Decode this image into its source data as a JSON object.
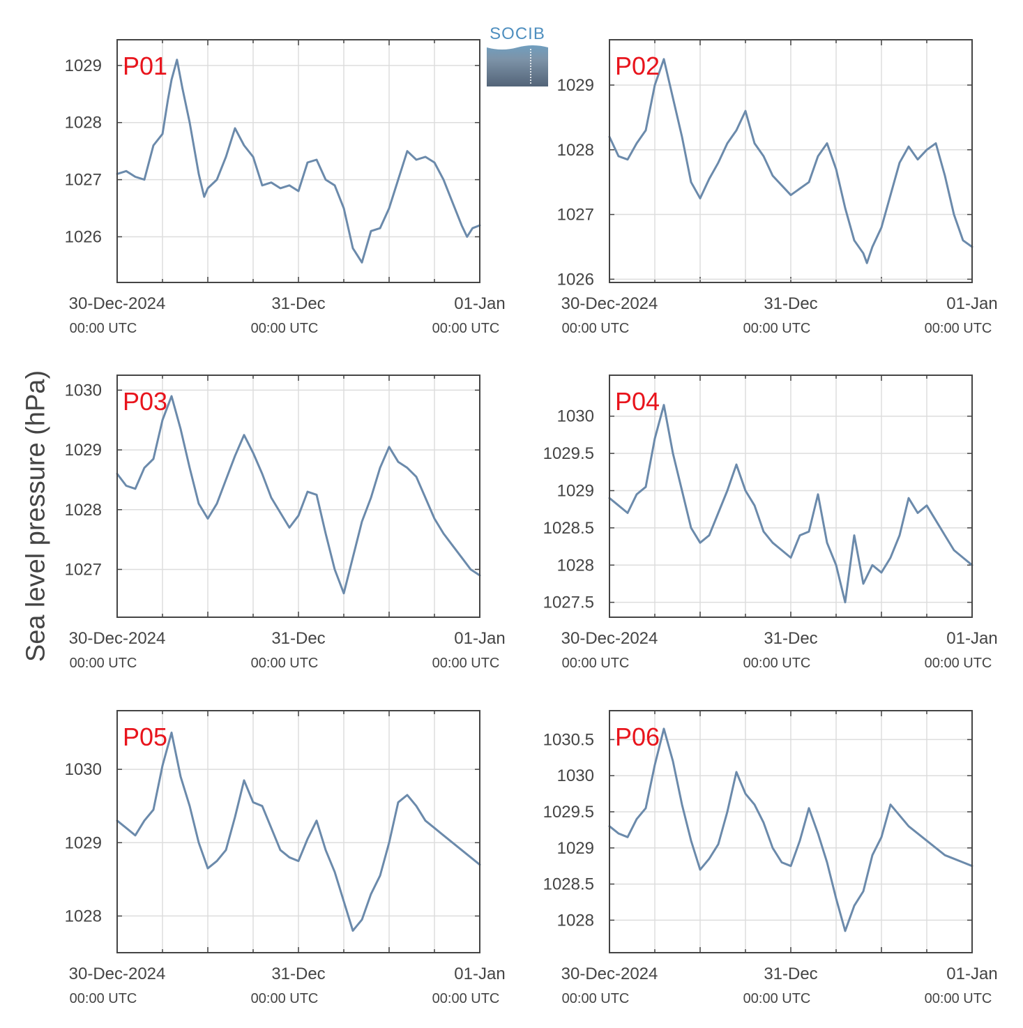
{
  "figure": {
    "ylabel": "Sea level pressure (hPa)",
    "logo": "SOCIB",
    "line_color": "#6b8aab",
    "label_color": "#e8141c"
  },
  "chart_data": [
    {
      "type": "line",
      "name": "P01",
      "x_ticks": [
        {
          "day": 0,
          "date": "30-Dec-2024",
          "time": "00:00 UTC"
        },
        {
          "day": 1,
          "date": "31-Dec",
          "time": "00:00 UTC"
        },
        {
          "day": 2,
          "date": "01-Jan",
          "time": "00:00 UTC"
        }
      ],
      "xlim": [
        0,
        2
      ],
      "ylim": [
        1025.2,
        1029.45
      ],
      "yticks": [
        {
          "v": 1026,
          "label": "1026"
        },
        {
          "v": 1027,
          "label": "1027"
        },
        {
          "v": 1028,
          "label": "1028"
        },
        {
          "v": 1029,
          "label": "1029"
        }
      ],
      "x": [
        0,
        0.05,
        0.1,
        0.15,
        0.2,
        0.25,
        0.28,
        0.3,
        0.33,
        0.36,
        0.4,
        0.45,
        0.48,
        0.5,
        0.55,
        0.6,
        0.65,
        0.7,
        0.75,
        0.8,
        0.85,
        0.9,
        0.95,
        1.0,
        1.05,
        1.1,
        1.15,
        1.2,
        1.25,
        1.3,
        1.35,
        1.4,
        1.45,
        1.5,
        1.53,
        1.56,
        1.6,
        1.65,
        1.7,
        1.75,
        1.8,
        1.85,
        1.9,
        1.93,
        1.96,
        2.0
      ],
      "y": [
        1027.1,
        1027.15,
        1027.05,
        1027.0,
        1027.6,
        1027.8,
        1028.4,
        1028.75,
        1029.1,
        1028.6,
        1028.0,
        1027.1,
        1026.7,
        1026.85,
        1027.0,
        1027.4,
        1027.9,
        1027.6,
        1027.4,
        1026.9,
        1026.95,
        1026.85,
        1026.9,
        1026.8,
        1027.3,
        1027.35,
        1027.0,
        1026.9,
        1026.5,
        1025.8,
        1025.55,
        1026.1,
        1026.15,
        1026.5,
        1026.8,
        1027.1,
        1027.5,
        1027.35,
        1027.4,
        1027.3,
        1027.0,
        1026.6,
        1026.2,
        1026.0,
        1026.15,
        1026.2
      ]
    },
    {
      "type": "line",
      "name": "P02",
      "x_ticks": [
        {
          "day": 0,
          "date": "30-Dec-2024",
          "time": "00:00 UTC"
        },
        {
          "day": 1,
          "date": "31-Dec",
          "time": "00:00 UTC"
        },
        {
          "day": 2,
          "date": "01-Jan",
          "time": "00:00 UTC"
        }
      ],
      "xlim": [
        0,
        2
      ],
      "ylim": [
        1025.95,
        1029.7
      ],
      "yticks": [
        {
          "v": 1026,
          "label": "1026"
        },
        {
          "v": 1027,
          "label": "1027"
        },
        {
          "v": 1028,
          "label": "1028"
        },
        {
          "v": 1029,
          "label": "1029"
        }
      ],
      "x": [
        0,
        0.05,
        0.1,
        0.15,
        0.2,
        0.25,
        0.3,
        0.35,
        0.4,
        0.45,
        0.5,
        0.55,
        0.6,
        0.65,
        0.7,
        0.75,
        0.8,
        0.85,
        0.9,
        0.95,
        1.0,
        1.05,
        1.1,
        1.15,
        1.2,
        1.25,
        1.3,
        1.35,
        1.4,
        1.42,
        1.45,
        1.5,
        1.55,
        1.6,
        1.65,
        1.7,
        1.75,
        1.8,
        1.85,
        1.9,
        1.95,
        2.0
      ],
      "y": [
        1028.2,
        1027.9,
        1027.85,
        1028.1,
        1028.3,
        1029.0,
        1029.4,
        1028.8,
        1028.2,
        1027.5,
        1027.25,
        1027.55,
        1027.8,
        1028.1,
        1028.3,
        1028.6,
        1028.1,
        1027.9,
        1027.6,
        1027.45,
        1027.3,
        1027.4,
        1027.5,
        1027.9,
        1028.1,
        1027.7,
        1027.1,
        1026.6,
        1026.4,
        1026.25,
        1026.5,
        1026.8,
        1027.3,
        1027.8,
        1028.05,
        1027.85,
        1028.0,
        1028.1,
        1027.6,
        1027.0,
        1026.6,
        1026.5
      ]
    },
    {
      "type": "line",
      "name": "P03",
      "x_ticks": [
        {
          "day": 0,
          "date": "30-Dec-2024",
          "time": "00:00 UTC"
        },
        {
          "day": 1,
          "date": "31-Dec",
          "time": "00:00 UTC"
        },
        {
          "day": 2,
          "date": "01-Jan",
          "time": "00:00 UTC"
        }
      ],
      "xlim": [
        0,
        2
      ],
      "ylim": [
        1026.2,
        1030.25
      ],
      "yticks": [
        {
          "v": 1027,
          "label": "1027"
        },
        {
          "v": 1028,
          "label": "1028"
        },
        {
          "v": 1029,
          "label": "1029"
        },
        {
          "v": 1030,
          "label": "1030"
        }
      ],
      "x": [
        0,
        0.05,
        0.1,
        0.15,
        0.2,
        0.25,
        0.3,
        0.35,
        0.4,
        0.45,
        0.5,
        0.55,
        0.6,
        0.65,
        0.7,
        0.75,
        0.8,
        0.85,
        0.9,
        0.95,
        1.0,
        1.05,
        1.1,
        1.15,
        1.2,
        1.25,
        1.3,
        1.35,
        1.4,
        1.45,
        1.5,
        1.55,
        1.6,
        1.65,
        1.7,
        1.75,
        1.8,
        1.85,
        1.9,
        1.95,
        2.0
      ],
      "y": [
        1028.6,
        1028.4,
        1028.35,
        1028.7,
        1028.85,
        1029.5,
        1029.9,
        1029.35,
        1028.7,
        1028.1,
        1027.85,
        1028.1,
        1028.5,
        1028.9,
        1029.25,
        1028.95,
        1028.6,
        1028.2,
        1027.95,
        1027.7,
        1027.9,
        1028.3,
        1028.25,
        1027.6,
        1027.0,
        1026.6,
        1027.2,
        1027.8,
        1028.2,
        1028.7,
        1029.05,
        1028.8,
        1028.7,
        1028.55,
        1028.2,
        1027.85,
        1027.6,
        1027.4,
        1027.2,
        1027.0,
        1026.9
      ]
    },
    {
      "type": "line",
      "name": "P04",
      "x_ticks": [
        {
          "day": 0,
          "date": "30-Dec-2024",
          "time": "00:00 UTC"
        },
        {
          "day": 1,
          "date": "31-Dec",
          "time": "00:00 UTC"
        },
        {
          "day": 2,
          "date": "01-Jan",
          "time": "00:00 UTC"
        }
      ],
      "xlim": [
        0,
        2
      ],
      "ylim": [
        1027.3,
        1030.55
      ],
      "yticks": [
        {
          "v": 1027.5,
          "label": "1027.5"
        },
        {
          "v": 1028,
          "label": "1028"
        },
        {
          "v": 1028.5,
          "label": "1028.5"
        },
        {
          "v": 1029,
          "label": "1029"
        },
        {
          "v": 1029.5,
          "label": "1029.5"
        },
        {
          "v": 1030,
          "label": "1030"
        }
      ],
      "x": [
        0,
        0.05,
        0.1,
        0.15,
        0.2,
        0.25,
        0.3,
        0.35,
        0.4,
        0.45,
        0.5,
        0.55,
        0.6,
        0.65,
        0.7,
        0.75,
        0.8,
        0.85,
        0.9,
        0.95,
        1.0,
        1.05,
        1.1,
        1.15,
        1.2,
        1.25,
        1.3,
        1.35,
        1.4,
        1.45,
        1.5,
        1.55,
        1.6,
        1.65,
        1.7,
        1.75,
        1.8,
        1.85,
        1.9,
        1.95,
        2.0
      ],
      "y": [
        1028.9,
        1028.8,
        1028.7,
        1028.95,
        1029.05,
        1029.7,
        1030.15,
        1029.5,
        1029.0,
        1028.5,
        1028.3,
        1028.4,
        1028.7,
        1029.0,
        1029.35,
        1029.0,
        1028.8,
        1028.45,
        1028.3,
        1028.2,
        1028.1,
        1028.4,
        1028.45,
        1028.95,
        1028.3,
        1028.0,
        1027.5,
        1028.4,
        1027.75,
        1028.0,
        1027.9,
        1028.1,
        1028.4,
        1028.9,
        1028.7,
        1028.8,
        1028.6,
        1028.4,
        1028.2,
        1028.1,
        1028.0
      ]
    },
    {
      "type": "line",
      "name": "P05",
      "x_ticks": [
        {
          "day": 0,
          "date": "30-Dec-2024",
          "time": "00:00 UTC"
        },
        {
          "day": 1,
          "date": "31-Dec",
          "time": "00:00 UTC"
        },
        {
          "day": 2,
          "date": "01-Jan",
          "time": "00:00 UTC"
        }
      ],
      "xlim": [
        0,
        2
      ],
      "ylim": [
        1027.5,
        1030.8
      ],
      "yticks": [
        {
          "v": 1028,
          "label": "1028"
        },
        {
          "v": 1029,
          "label": "1029"
        },
        {
          "v": 1030,
          "label": "1030"
        }
      ],
      "x": [
        0,
        0.05,
        0.1,
        0.15,
        0.2,
        0.25,
        0.3,
        0.35,
        0.4,
        0.45,
        0.5,
        0.55,
        0.6,
        0.65,
        0.7,
        0.75,
        0.8,
        0.85,
        0.9,
        0.95,
        1.0,
        1.05,
        1.1,
        1.15,
        1.2,
        1.25,
        1.3,
        1.35,
        1.4,
        1.45,
        1.5,
        1.55,
        1.6,
        1.65,
        1.7,
        1.75,
        1.8,
        1.85,
        1.9,
        1.95,
        2.0
      ],
      "y": [
        1029.3,
        1029.2,
        1029.1,
        1029.3,
        1029.45,
        1030.05,
        1030.5,
        1029.9,
        1029.5,
        1029.0,
        1028.65,
        1028.75,
        1028.9,
        1029.35,
        1029.85,
        1029.55,
        1029.5,
        1029.2,
        1028.9,
        1028.8,
        1028.75,
        1029.05,
        1029.3,
        1028.9,
        1028.6,
        1028.2,
        1027.8,
        1027.95,
        1028.3,
        1028.55,
        1029.0,
        1029.55,
        1029.65,
        1029.5,
        1029.3,
        1029.2,
        1029.1,
        1029.0,
        1028.9,
        1028.8,
        1028.7
      ]
    },
    {
      "type": "line",
      "name": "P06",
      "x_ticks": [
        {
          "day": 0,
          "date": "30-Dec-2024",
          "time": "00:00 UTC"
        },
        {
          "day": 1,
          "date": "31-Dec",
          "time": "00:00 UTC"
        },
        {
          "day": 2,
          "date": "01-Jan",
          "time": "00:00 UTC"
        }
      ],
      "xlim": [
        0,
        2
      ],
      "ylim": [
        1027.55,
        1030.9
      ],
      "yticks": [
        {
          "v": 1028,
          "label": "1028"
        },
        {
          "v": 1028.5,
          "label": "1028.5"
        },
        {
          "v": 1029,
          "label": "1029"
        },
        {
          "v": 1029.5,
          "label": "1029.5"
        },
        {
          "v": 1030,
          "label": "1030"
        },
        {
          "v": 1030.5,
          "label": "1030.5"
        }
      ],
      "x": [
        0,
        0.05,
        0.1,
        0.15,
        0.2,
        0.25,
        0.3,
        0.35,
        0.4,
        0.45,
        0.5,
        0.55,
        0.6,
        0.65,
        0.7,
        0.75,
        0.8,
        0.85,
        0.9,
        0.95,
        1.0,
        1.05,
        1.1,
        1.15,
        1.2,
        1.25,
        1.3,
        1.35,
        1.4,
        1.45,
        1.5,
        1.55,
        1.6,
        1.65,
        1.7,
        1.75,
        1.8,
        1.85,
        1.9,
        1.95,
        2.0
      ],
      "y": [
        1029.3,
        1029.2,
        1029.15,
        1029.4,
        1029.55,
        1030.15,
        1030.65,
        1030.2,
        1029.6,
        1029.1,
        1028.7,
        1028.85,
        1029.05,
        1029.5,
        1030.05,
        1029.75,
        1029.6,
        1029.35,
        1029.0,
        1028.8,
        1028.75,
        1029.1,
        1029.55,
        1029.2,
        1028.8,
        1028.3,
        1027.85,
        1028.2,
        1028.4,
        1028.9,
        1029.15,
        1029.6,
        1029.45,
        1029.3,
        1029.2,
        1029.1,
        1029.0,
        1028.9,
        1028.85,
        1028.8,
        1028.75
      ]
    }
  ]
}
